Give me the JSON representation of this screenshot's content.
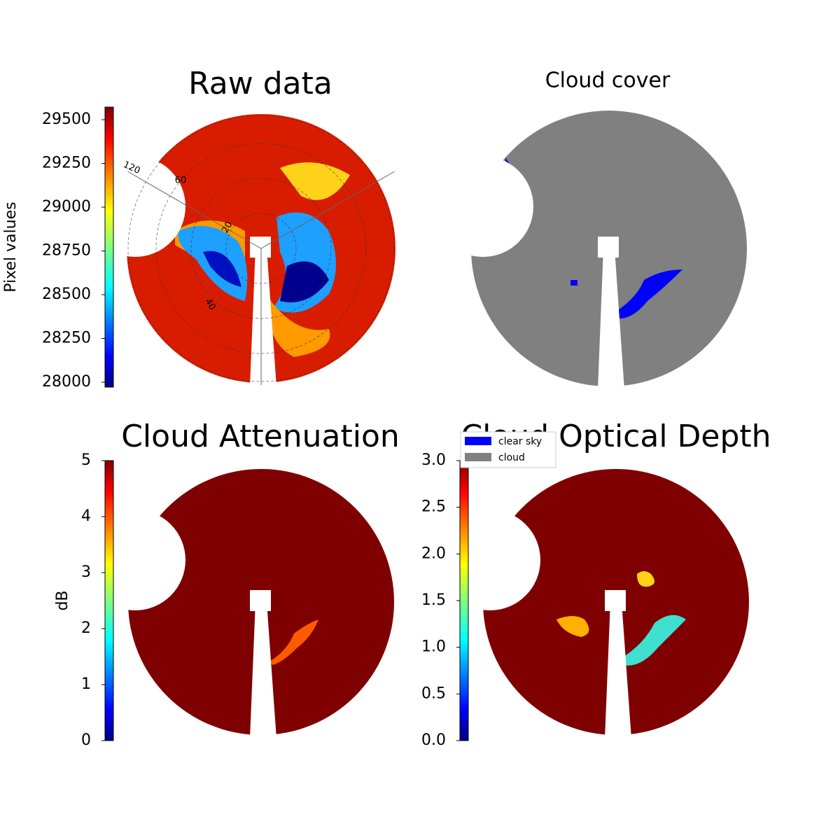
{
  "chart_data": [
    {
      "type": "image",
      "title": "Raw data",
      "colorbar": {
        "label": "Pixel values",
        "colormap": "jet",
        "ylim": [
          27972,
          29572
        ],
        "yticks": [
          28000,
          28250,
          28500,
          28750,
          29000,
          29250,
          29500
        ]
      },
      "polar_labels": [
        "120",
        "60",
        "20",
        "40"
      ]
    },
    {
      "type": "image",
      "title": "Cloud cover",
      "legend": [
        {
          "name": "clear sky",
          "color": "#0000ff"
        },
        {
          "name": "cloud",
          "color": "#808080"
        }
      ]
    },
    {
      "type": "image",
      "title": "Cloud Attenuation",
      "colorbar": {
        "label": "dB",
        "colormap": "jet",
        "ylim": [
          0,
          5
        ],
        "yticks": [
          0,
          1,
          2,
          3,
          4,
          5
        ]
      }
    },
    {
      "type": "image",
      "title": "Cloud Optical Depth",
      "colorbar": {
        "colormap": "jet",
        "ylim": [
          0,
          3
        ],
        "yticks": [
          {
            "value": 0,
            "label": "0.0"
          },
          {
            "value": 0.5,
            "label": "0.5"
          },
          {
            "value": 1,
            "label": "1.0"
          },
          {
            "value": 1.5,
            "label": "1.5"
          },
          {
            "value": 2,
            "label": "2.0"
          },
          {
            "value": 2.5,
            "label": "2.5"
          },
          {
            "value": 3,
            "label": "3.0"
          }
        ]
      }
    }
  ]
}
